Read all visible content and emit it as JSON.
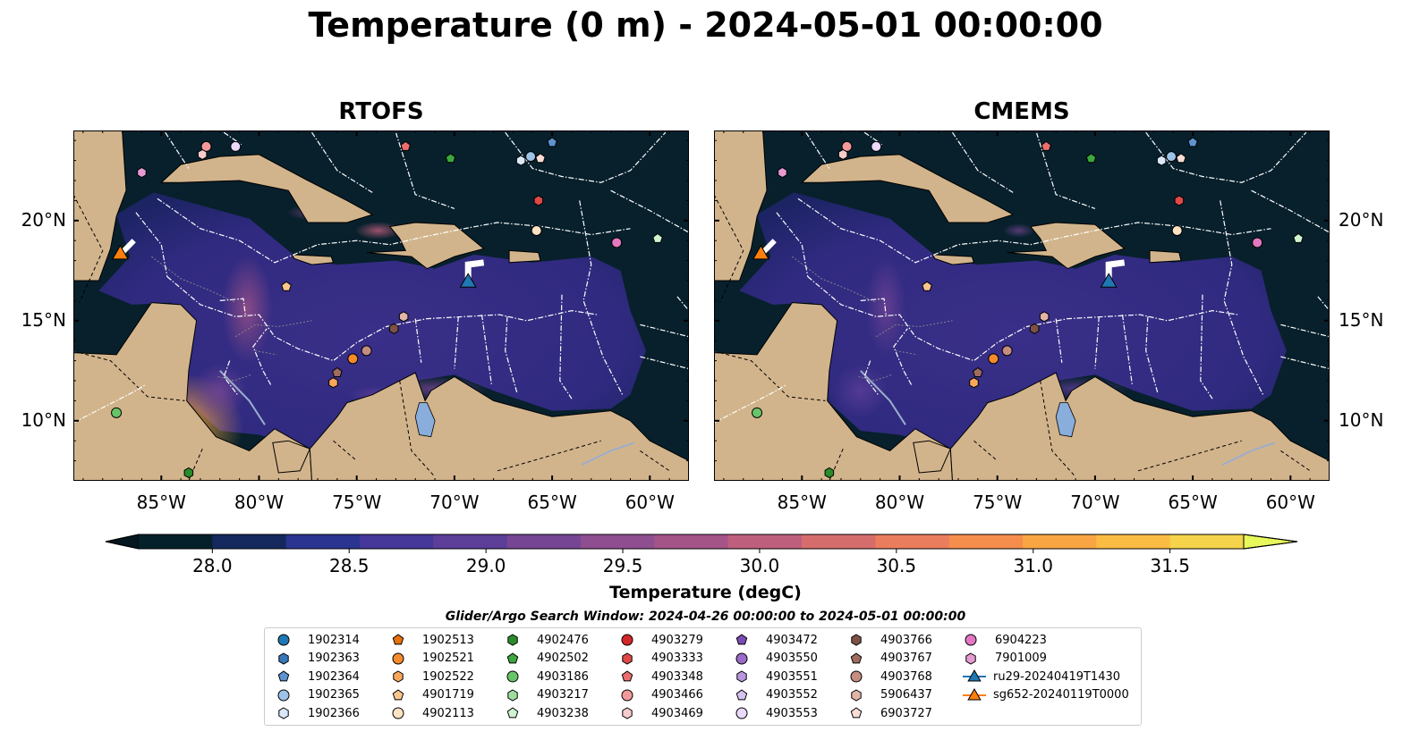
{
  "figure": {
    "suptitle": "Temperature (0 m) - 2024-05-01 00:00:00",
    "colorbar_label": "Temperature (degC)",
    "search_window": "Glider/Argo Search Window: 2024-04-26 00:00:00 to 2024-05-01 00:00:00"
  },
  "chart_data": [
    {
      "type": "heatmap",
      "title": "RTOFS",
      "lon_range": [
        -89.5,
        -58.0
      ],
      "lat_range": [
        7.0,
        24.5
      ],
      "x_ticks": [
        "85°W",
        "80°W",
        "75°W",
        "70°W",
        "65°W",
        "60°W"
      ],
      "y_ticks_left": [
        "20°N",
        "15°N",
        "10°N"
      ],
      "y_ticks_right": [],
      "colors": {
        "ocean": "#07202c",
        "land": "#d2b48c",
        "lake": "#89aedc"
      }
    },
    {
      "type": "heatmap",
      "title": "CMEMS",
      "lon_range": [
        -89.5,
        -58.0
      ],
      "lat_range": [
        7.0,
        24.5
      ],
      "x_ticks": [
        "85°W",
        "80°W",
        "75°W",
        "70°W",
        "65°W",
        "60°W"
      ],
      "y_ticks_left": [],
      "y_ticks_right": [
        "20°N",
        "15°N",
        "10°N"
      ],
      "colors": {
        "ocean": "#07202c",
        "land": "#d2b48c",
        "lake": "#89aedc"
      }
    }
  ],
  "colorbar": {
    "ticks": [
      "28.0",
      "28.5",
      "29.0",
      "29.5",
      "30.0",
      "30.5",
      "31.0",
      "31.5"
    ],
    "range": [
      28.0,
      31.5
    ],
    "extend": "both",
    "colors": [
      "#06202b",
      "#15285e",
      "#2b3490",
      "#45389a",
      "#5c3e98",
      "#764695",
      "#8f4e8f",
      "#a55487",
      "#be5f7d",
      "#d66d6d",
      "#ea7d5d",
      "#f58d4c",
      "#f9a544",
      "#fbbc44",
      "#f5d34a"
    ],
    "under_color": "#041720",
    "over_color": "#e8f85c"
  },
  "platforms": [
    {
      "id": "1902314",
      "marker": "circle",
      "color": "#1f77b4",
      "lon": null,
      "lat": null
    },
    {
      "id": "1902363",
      "marker": "hexagon",
      "color": "#3877b8",
      "lon": null,
      "lat": null
    },
    {
      "id": "1902364",
      "marker": "pentagon",
      "color": "#5d93cf",
      "lon": -65.0,
      "lat": 23.9
    },
    {
      "id": "1902365",
      "marker": "circle",
      "color": "#9ec3e8",
      "lon": -66.1,
      "lat": 23.2
    },
    {
      "id": "1902366",
      "marker": "hexagon",
      "color": "#d8e8f8",
      "lon": -66.6,
      "lat": 23.0
    },
    {
      "id": "1902513",
      "marker": "pentagon",
      "color": "#e8710c",
      "lon": null,
      "lat": null
    },
    {
      "id": "1902521",
      "marker": "circle",
      "color": "#f58b2b",
      "lon": -75.2,
      "lat": 13.1
    },
    {
      "id": "1902522",
      "marker": "hexagon",
      "color": "#f9a75a",
      "lon": -76.2,
      "lat": 11.9
    },
    {
      "id": "4901719",
      "marker": "pentagon",
      "color": "#fbc68d",
      "lon": -78.6,
      "lat": 16.7
    },
    {
      "id": "4902113",
      "marker": "circle",
      "color": "#fde3c4",
      "lon": -65.8,
      "lat": 19.5
    },
    {
      "id": "4902476",
      "marker": "hexagon",
      "color": "#2a8c2a",
      "lon": -83.6,
      "lat": 7.4
    },
    {
      "id": "4902502",
      "marker": "pentagon",
      "color": "#3da63d",
      "lon": -70.2,
      "lat": 23.1
    },
    {
      "id": "4903186",
      "marker": "circle",
      "color": "#68c468",
      "lon": -87.3,
      "lat": 10.4
    },
    {
      "id": "4903217",
      "marker": "hexagon",
      "color": "#9edd9e",
      "lon": null,
      "lat": null
    },
    {
      "id": "4903238",
      "marker": "pentagon",
      "color": "#d0f3cf",
      "lon": -59.6,
      "lat": 19.1
    },
    {
      "id": "4903279",
      "marker": "circle",
      "color": "#d62728",
      "lon": null,
      "lat": null
    },
    {
      "id": "4903333",
      "marker": "hexagon",
      "color": "#e04848",
      "lon": -65.7,
      "lat": 21.0
    },
    {
      "id": "4903348",
      "marker": "pentagon",
      "color": "#ec6d6d",
      "lon": -72.5,
      "lat": 23.7
    },
    {
      "id": "4903466",
      "marker": "circle",
      "color": "#f29a9a",
      "lon": -82.7,
      "lat": 23.7
    },
    {
      "id": "4903469",
      "marker": "hexagon",
      "color": "#f9cccc",
      "lon": -82.9,
      "lat": 23.3
    },
    {
      "id": "4903472",
      "marker": "pentagon",
      "color": "#7b4bb5",
      "lon": null,
      "lat": null
    },
    {
      "id": "4903550",
      "marker": "circle",
      "color": "#9a6bca",
      "lon": null,
      "lat": null
    },
    {
      "id": "4903551",
      "marker": "hexagon",
      "color": "#b896dd",
      "lon": null,
      "lat": null
    },
    {
      "id": "4903552",
      "marker": "pentagon",
      "color": "#d6c2ef",
      "lon": null,
      "lat": null
    },
    {
      "id": "4903553",
      "marker": "circle",
      "color": "#ead9fb",
      "lon": -81.2,
      "lat": 23.7
    },
    {
      "id": "4903766",
      "marker": "hexagon",
      "color": "#7d5147",
      "lon": -73.1,
      "lat": 14.6
    },
    {
      "id": "4903767",
      "marker": "pentagon",
      "color": "#a06c60",
      "lon": -76.0,
      "lat": 12.4
    },
    {
      "id": "4903768",
      "marker": "circle",
      "color": "#c48d80",
      "lon": -74.5,
      "lat": 13.5
    },
    {
      "id": "5906437",
      "marker": "hexagon",
      "color": "#e2b4a8",
      "lon": -72.6,
      "lat": 15.2
    },
    {
      "id": "6903727",
      "marker": "pentagon",
      "color": "#f9dcd5",
      "lon": -65.6,
      "lat": 23.1
    },
    {
      "id": "6904223",
      "marker": "circle",
      "color": "#e377c2",
      "lon": -61.7,
      "lat": 18.9
    },
    {
      "id": "7901009",
      "marker": "hexagon",
      "color": "#e69ad2",
      "lon": -86.0,
      "lat": 22.4
    }
  ],
  "gliders": [
    {
      "id": "ru29-20240419T1430",
      "marker": "triangle",
      "color": "#1f77b4",
      "lon": -69.3,
      "lat": 16.9
    },
    {
      "id": "sg652-20240119T0000",
      "marker": "triangle",
      "color": "#ff7f0e",
      "lon": -87.1,
      "lat": 18.3
    }
  ]
}
